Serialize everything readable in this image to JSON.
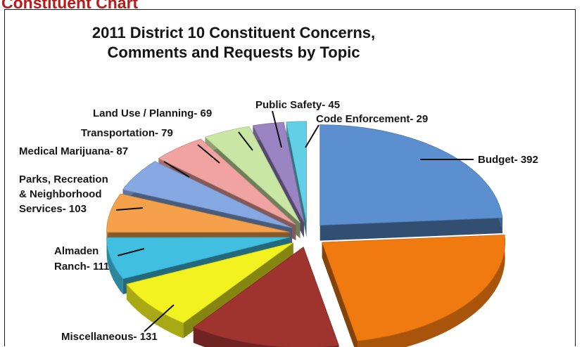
{
  "page": {
    "heading": "Constituent Chart"
  },
  "chart_data": {
    "type": "pie",
    "title_lines": [
      "2011 District 10 Constituent Concerns,",
      "Comments and Requests by Topic"
    ],
    "exploded": true,
    "three_d": true,
    "slices": [
      {
        "label": "Budget",
        "value": 392,
        "display": "Budget- 392",
        "color": "#5b8fd0"
      },
      {
        "label": "",
        "value": 380,
        "display": "",
        "color": "#f07a10"
      },
      {
        "label": "",
        "value": 220,
        "display": "",
        "color": "#9e3330"
      },
      {
        "label": "Miscellaneous",
        "value": 131,
        "display": "Miscellaneous- 131",
        "color": "#f2f220"
      },
      {
        "label": "Almaden Ranch",
        "value": 111,
        "display_lines": [
          "Almaden",
          "Ranch- 111"
        ],
        "color": "#41bfe0"
      },
      {
        "label": "Parks, Recreation & Neighborhood Services",
        "value": 103,
        "display_lines": [
          "Parks, Recreation",
          "& Neighborhood",
          "Services- 103"
        ],
        "color": "#f5a04a"
      },
      {
        "label": "Medical Marijuana",
        "value": 87,
        "display": "Medical Marijuana- 87",
        "color": "#86a8e2"
      },
      {
        "label": "Transportation",
        "value": 79,
        "display": "Transportation- 79",
        "color": "#f0a3a0"
      },
      {
        "label": "Land Use / Planning",
        "value": 69,
        "display": "Land Use / Planning- 69",
        "color": "#c9e6a4"
      },
      {
        "label": "Public Safety",
        "value": 45,
        "display": "Public Safety- 45",
        "color": "#9b84c2"
      },
      {
        "label": "Code Enforcement",
        "value": 29,
        "display": "Code Enforcement- 29",
        "color": "#63cfe6"
      }
    ]
  }
}
